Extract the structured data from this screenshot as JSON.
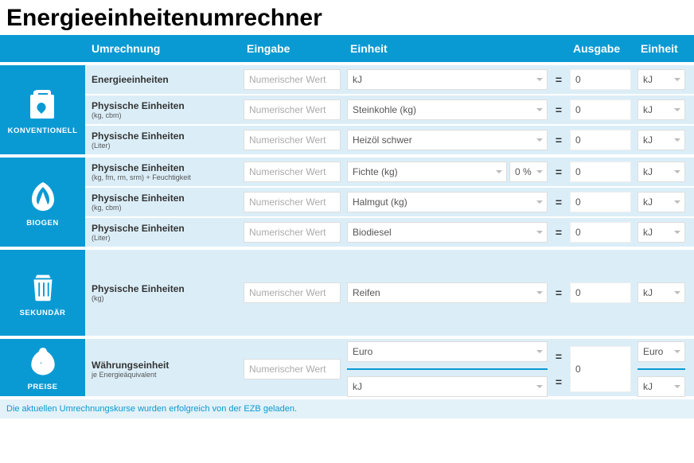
{
  "title": "Energieeinheitenumrechner",
  "header": {
    "umrechnung": "Umrechnung",
    "eingabe": "Eingabe",
    "einheit": "Einheit",
    "ausgabe": "Ausgabe",
    "einheit2": "Einheit"
  },
  "placeholder": "Numerischer Wert",
  "groups": [
    {
      "id": "konv",
      "icon": "can",
      "label": "KONVENTIONELL",
      "rows": [
        {
          "label": "Energieeinheiten",
          "sub": "",
          "unit": "kJ",
          "pct": null,
          "out": "0",
          "outUnit": "kJ"
        },
        {
          "label": "Physische Einheiten",
          "sub": "(kg, cbm)",
          "unit": "Steinkohle (kg)",
          "pct": null,
          "out": "0",
          "outUnit": "kJ"
        },
        {
          "label": "Physische Einheiten",
          "sub": "(Liter)",
          "unit": "Heizöl schwer",
          "pct": null,
          "out": "0",
          "outUnit": "kJ"
        }
      ]
    },
    {
      "id": "bio",
      "icon": "leaf",
      "label": "BIOGEN",
      "rows": [
        {
          "label": "Physische Einheiten",
          "sub": "(kg, fm, rm, srm) + Feuchtigkeit",
          "unit": "Fichte (kg)",
          "pct": "0 %",
          "out": "0",
          "outUnit": "kJ"
        },
        {
          "label": "Physische Einheiten",
          "sub": "(kg, cbm)",
          "unit": "Halmgut (kg)",
          "pct": null,
          "out": "0",
          "outUnit": "kJ"
        },
        {
          "label": "Physische Einheiten",
          "sub": "(Liter)",
          "unit": "Biodiesel",
          "pct": null,
          "out": "0",
          "outUnit": "kJ"
        }
      ]
    },
    {
      "id": "sek",
      "icon": "trash",
      "label": "SEKUNDÄR",
      "rows": [
        {
          "label": "Physische Einheiten",
          "sub": "(kg)",
          "unit": "Reifen",
          "pct": null,
          "out": "0",
          "outUnit": "kJ"
        }
      ]
    },
    {
      "id": "price",
      "icon": "bag",
      "label": "PREISE",
      "price": {
        "label": "Währungseinheit",
        "sub": "je Energieäquivalent",
        "curIn": "Euro",
        "unitIn": "kJ",
        "out": "0",
        "curOut": "Euro",
        "unitOut": "kJ"
      }
    }
  ],
  "footer": "Die aktuellen Umrechnungskurse wurden erfolgreich von der EZB geladen."
}
